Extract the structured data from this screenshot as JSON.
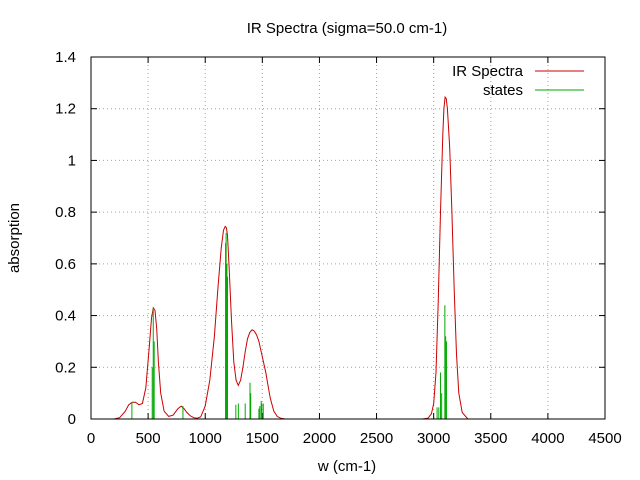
{
  "chart_data": {
    "type": "line",
    "title": "IR Spectra (sigma=50.0 cm-1)",
    "xlabel": "w (cm-1)",
    "ylabel": "absorption",
    "xlim": [
      0,
      4500
    ],
    "ylim": [
      0,
      1.4
    ],
    "xticks": [
      "0",
      "500",
      "1000",
      "1500",
      "2000",
      "2500",
      "3000",
      "3500",
      "4000",
      "4500"
    ],
    "yticks": [
      "0",
      "0.2",
      "0.4",
      "0.6",
      "0.8",
      "1",
      "1.2",
      "1.4"
    ],
    "grid": true,
    "legend_position": "top-right",
    "series": [
      {
        "name": "IR Spectra",
        "style": "line",
        "color": "#cc0000",
        "x": [
          200,
          250,
          300,
          330,
          360,
          390,
          420,
          450,
          480,
          510,
          530,
          545,
          560,
          575,
          590,
          610,
          640,
          680,
          720,
          760,
          790,
          815,
          840,
          870,
          900,
          930,
          960,
          1000,
          1040,
          1080,
          1110,
          1140,
          1160,
          1175,
          1185,
          1195,
          1210,
          1230,
          1250,
          1270,
          1290,
          1310,
          1330,
          1350,
          1370,
          1390,
          1410,
          1430,
          1450,
          1470,
          1490,
          1510,
          1530,
          1550,
          1570,
          1600,
          1630,
          1660,
          1700,
          2000,
          2500,
          2900,
          2950,
          2980,
          3000,
          3020,
          3040,
          3060,
          3080,
          3090,
          3100,
          3110,
          3120,
          3140,
          3160,
          3180,
          3200,
          3220,
          3250,
          3300,
          3500,
          4200
        ],
        "y": [
          0.0,
          0.005,
          0.03,
          0.055,
          0.065,
          0.065,
          0.055,
          0.06,
          0.12,
          0.28,
          0.39,
          0.43,
          0.42,
          0.35,
          0.22,
          0.1,
          0.03,
          0.01,
          0.015,
          0.04,
          0.05,
          0.04,
          0.025,
          0.012,
          0.005,
          0.003,
          0.008,
          0.05,
          0.15,
          0.32,
          0.5,
          0.66,
          0.73,
          0.745,
          0.74,
          0.71,
          0.58,
          0.38,
          0.22,
          0.15,
          0.13,
          0.15,
          0.2,
          0.26,
          0.31,
          0.335,
          0.345,
          0.34,
          0.325,
          0.3,
          0.26,
          0.22,
          0.18,
          0.13,
          0.08,
          0.03,
          0.01,
          0.003,
          0.0,
          0.0,
          0.0,
          0.0,
          0.003,
          0.02,
          0.06,
          0.18,
          0.45,
          0.8,
          1.1,
          1.2,
          1.245,
          1.24,
          1.2,
          1.05,
          0.8,
          0.5,
          0.25,
          0.1,
          0.025,
          0.0,
          0.0,
          0.0
        ]
      },
      {
        "name": "states",
        "style": "impulses",
        "color": "#00aa00",
        "x": [
          358,
          536,
          545,
          553,
          805,
          1178,
          1183,
          1190,
          1195,
          1268,
          1290,
          1350,
          1392,
          1398,
          1470,
          1478,
          1490,
          1495,
          1508,
          3030,
          3045,
          3060,
          3070,
          3098,
          3105,
          3112
        ],
        "y": [
          0.065,
          0.2,
          0.43,
          0.3,
          0.05,
          0.68,
          0.72,
          0.6,
          0.55,
          0.055,
          0.06,
          0.06,
          0.14,
          0.1,
          0.04,
          0.05,
          0.07,
          0.06,
          0.06,
          0.045,
          0.045,
          0.18,
          0.1,
          0.44,
          0.32,
          0.3
        ]
      }
    ]
  }
}
